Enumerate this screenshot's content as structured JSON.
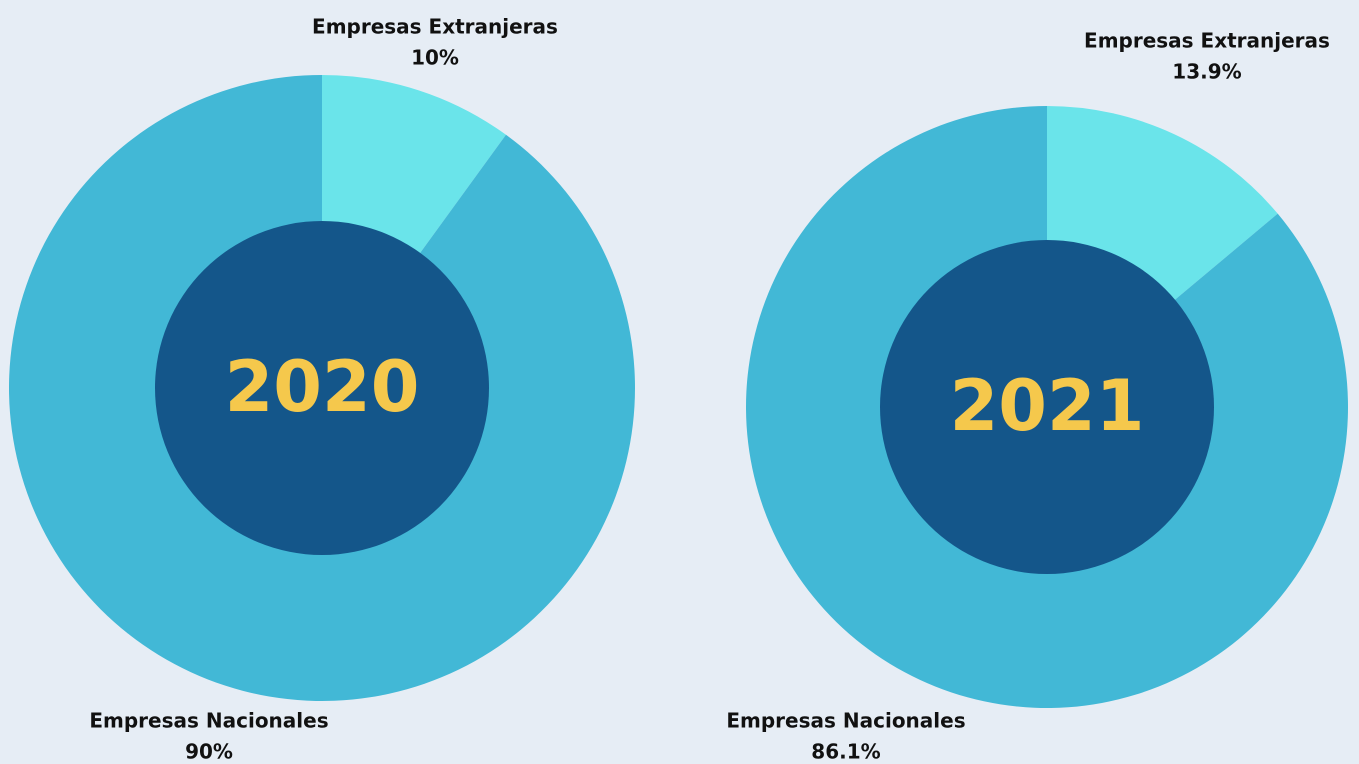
{
  "chart_data": [
    {
      "type": "pie",
      "title": "2020",
      "categories": [
        "Empresas Extranjeras",
        "Empresas Nacionales"
      ],
      "values": [
        10,
        90
      ],
      "value_labels": [
        "10%",
        "90%"
      ],
      "colors": [
        "#6ae4ea",
        "#42b8d6"
      ]
    },
    {
      "type": "pie",
      "title": "2021",
      "categories": [
        "Empresas Extranjeras",
        "Empresas Nacionales"
      ],
      "values": [
        13.9,
        86.1
      ],
      "value_labels": [
        "13.9%",
        "86.1%"
      ],
      "colors": [
        "#6ae4ea",
        "#42b8d6"
      ]
    }
  ]
}
